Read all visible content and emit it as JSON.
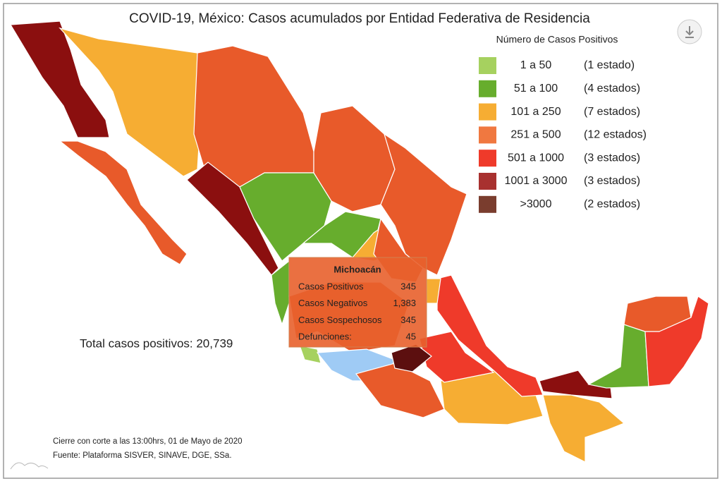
{
  "title": "COVID-19, México: Casos acumulados por Entidad Federativa de Residencia",
  "legend": {
    "title": "Número de Casos Positivos",
    "items": [
      {
        "range": "1 a 50",
        "count": "(1 estado)",
        "color": "#a6d15f"
      },
      {
        "range": "51 a 100",
        "count": "(4 estados)",
        "color": "#67ad2d"
      },
      {
        "range": "101 a 250",
        "count": "(7 estados)",
        "color": "#f6ad33"
      },
      {
        "range": "251 a 500",
        "count": "(12 estados)",
        "color": "#f07840"
      },
      {
        "range": "501 a 1000",
        "count": "(3 estados)",
        "color": "#ef3a2a"
      },
      {
        "range": "1001 a 3000",
        "count": "(3 estados)",
        "color": "#a8312f"
      },
      {
        "range": ">3000",
        "count": "(2 estados)",
        "color": "#7a3d2e"
      }
    ]
  },
  "tooltip": {
    "title": "Michoacán",
    "rows": [
      {
        "label": "Casos Positivos",
        "value": "345"
      },
      {
        "label": "Casos Negativos",
        "value": "1,383"
      },
      {
        "label": "Casos Sospechosos",
        "value": "345"
      },
      {
        "label": "Defunciones:",
        "value": "45"
      }
    ]
  },
  "total": "Total casos positivos: 20,739",
  "notes": [
    "Cierre con corte a las 13:00hrs, 01 de Mayo de 2020",
    "Fuente: Plataforma SISVER, SINAVE, DGE, SSa."
  ]
}
